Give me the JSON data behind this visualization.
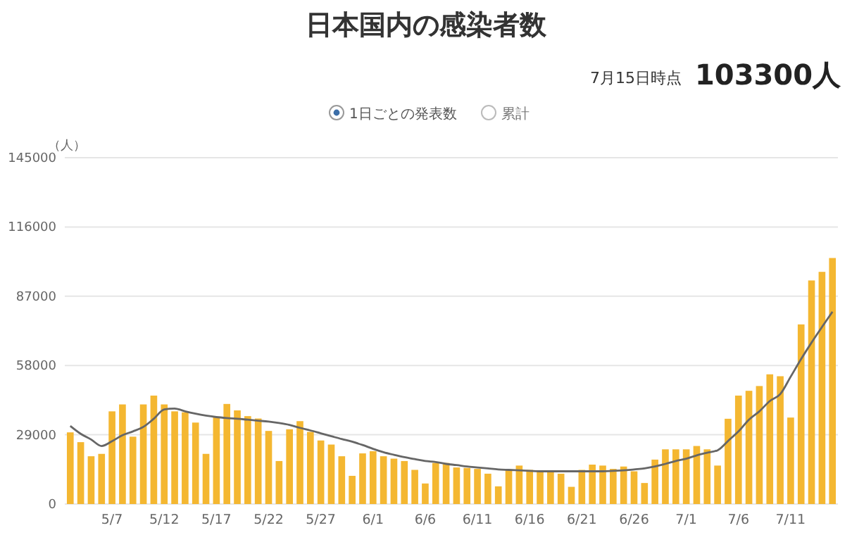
{
  "chart_data": {
    "type": "bar",
    "title": "日本国内の感染者数",
    "annotations": [
      "7月15日時点",
      "103300人",
      "累計"
    ],
    "ylabel": "（人）",
    "categories": [
      null,
      null,
      null,
      null,
      "5/7",
      null,
      null,
      null,
      null,
      "5/12",
      null,
      null,
      null,
      null,
      "5/17",
      null,
      null,
      null,
      null,
      "5/22",
      null,
      null,
      null,
      null,
      "5/27",
      null,
      null,
      null,
      null,
      "6/1",
      null,
      null,
      null,
      null,
      "6/6",
      null,
      null,
      null,
      null,
      "6/11",
      null,
      null,
      null,
      null,
      "6/16",
      null,
      null,
      null,
      null,
      "6/21",
      null,
      null,
      null,
      null,
      "6/26",
      null,
      null,
      null,
      null,
      "7/1",
      null,
      null,
      null,
      null,
      "7/6",
      null,
      null,
      null,
      null,
      "7/11",
      null,
      null,
      null,
      null
    ],
    "series": [
      {
        "name": "1日ごとの発表数",
        "color": "#f4b731",
        "values": [
          30000,
          25900,
          20000,
          21000,
          38800,
          41700,
          28200,
          41700,
          45400,
          41700,
          38800,
          38400,
          34100,
          21000,
          36600,
          41900,
          39200,
          36800,
          35800,
          30600,
          18000,
          31300,
          34700,
          30200,
          26600,
          24900,
          20000,
          11800,
          21200,
          22100,
          20000,
          19000,
          18000,
          14300,
          8600,
          17200,
          17200,
          15300,
          15100,
          14700,
          12700,
          7400,
          14300,
          16100,
          14300,
          13700,
          13700,
          12700,
          7200,
          14300,
          16500,
          16100,
          14700,
          15700,
          13700,
          8800,
          18600,
          22900,
          22900,
          22900,
          24300,
          22900,
          16100,
          35700,
          45400,
          47400,
          49400,
          54300,
          53500,
          36200,
          75200,
          93600,
          97200,
          103000
        ]
      },
      {
        "type": "line",
        "color": "#666666",
        "values": [
          32700,
          29400,
          27000,
          24300,
          26300,
          28800,
          30400,
          32300,
          35700,
          39600,
          40000,
          38800,
          37800,
          37000,
          36400,
          36000,
          35700,
          35300,
          34900,
          34500,
          33900,
          33100,
          31900,
          30800,
          29600,
          28400,
          27200,
          26100,
          24700,
          23100,
          21700,
          20600,
          19600,
          18800,
          18000,
          17600,
          16800,
          16300,
          15700,
          15300,
          14900,
          14500,
          14300,
          14100,
          13900,
          13700,
          13700,
          13700,
          13700,
          13700,
          13700,
          13700,
          13900,
          14100,
          14500,
          14900,
          15700,
          16800,
          18000,
          19000,
          20400,
          21500,
          22500,
          26400,
          30400,
          35300,
          38800,
          43100,
          46000,
          53300,
          60700,
          67600,
          74100,
          80500
        ]
      }
    ],
    "ylim": [
      0,
      145000
    ],
    "yticks": [
      0,
      29000,
      58000,
      87000,
      116000,
      145000
    ],
    "grid": "y",
    "legend": "top",
    "marker": "none"
  }
}
